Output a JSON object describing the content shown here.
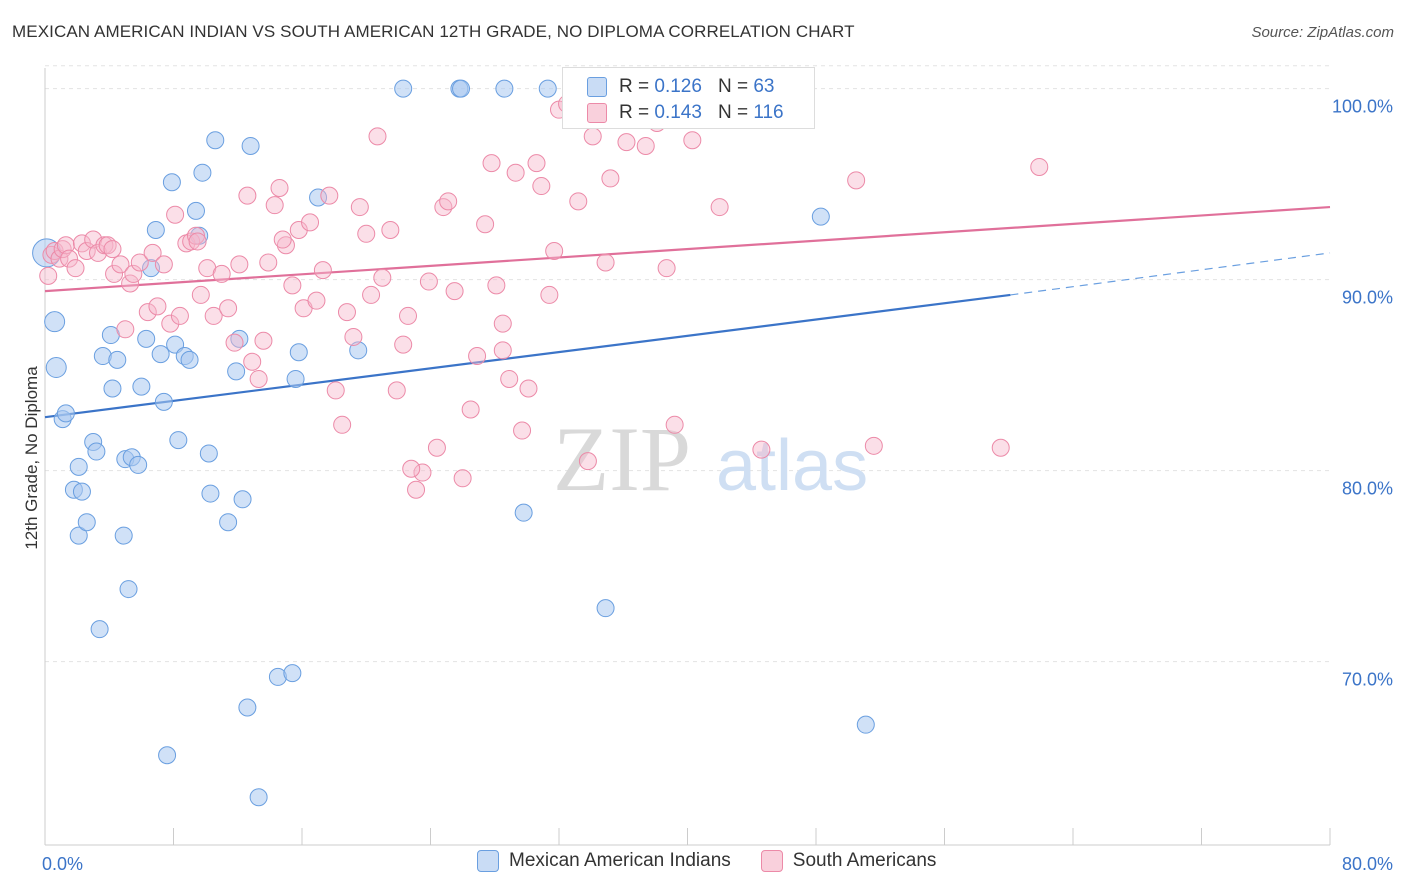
{
  "title": "MEXICAN AMERICAN INDIAN VS SOUTH AMERICAN 12TH GRADE, NO DIPLOMA CORRELATION CHART",
  "source": "Source: ZipAtlas.com",
  "watermark": {
    "zip": "ZIP",
    "atlas": "atlas"
  },
  "stats": [
    {
      "r_label": "R = ",
      "r": "0.126",
      "n_label": "N = ",
      "n": "63",
      "color": "#6a9fe0"
    },
    {
      "r_label": "R = ",
      "r": "0.143",
      "n_label": "N = ",
      "n": "116",
      "color": "#ec8aa8"
    }
  ],
  "legend": [
    {
      "label": "Mexican American Indians",
      "color": "#6a9fe0"
    },
    {
      "label": "South Americans",
      "color": "#ec8aa8"
    }
  ],
  "chart_data": {
    "type": "scatter",
    "title": "MEXICAN AMERICAN INDIAN VS SOUTH AMERICAN 12TH GRADE, NO DIPLOMA CORRELATION CHART",
    "xlabel": "",
    "ylabel": "12th Grade, No Diploma",
    "xlim": [
      0,
      80
    ],
    "ylim": [
      60.4,
      101.5
    ],
    "x_tick_labels": [
      "0.0%",
      "80.0%"
    ],
    "y_ticks": [
      70,
      80,
      90,
      100
    ],
    "y_tick_labels": [
      "70.0%",
      "80.0%",
      "90.0%",
      "100.0%"
    ],
    "grid": true,
    "series": [
      {
        "name": "Mexican American Indians",
        "color": "#6a9fe0",
        "trend": {
          "x": [
            0,
            60.1
          ],
          "y": [
            82.8,
            89.2
          ],
          "dash_to": [
            80,
            91.4
          ]
        },
        "points": [
          [
            0.1,
            91.4
          ],
          [
            0.6,
            87.8
          ],
          [
            0.7,
            85.4
          ],
          [
            1.1,
            82.7
          ],
          [
            1.3,
            83
          ],
          [
            1.8,
            79
          ],
          [
            2.1,
            76.6
          ],
          [
            2.1,
            80.2
          ],
          [
            2.3,
            78.9
          ],
          [
            2.6,
            77.3
          ],
          [
            3,
            81.5
          ],
          [
            3.2,
            81
          ],
          [
            3.4,
            71.7
          ],
          [
            3.6,
            86
          ],
          [
            4.1,
            87.1
          ],
          [
            4.2,
            84.3
          ],
          [
            4.5,
            85.8
          ],
          [
            4.9,
            76.6
          ],
          [
            5,
            80.6
          ],
          [
            5.2,
            73.8
          ],
          [
            5.4,
            80.7
          ],
          [
            5.8,
            80.3
          ],
          [
            6,
            84.4
          ],
          [
            6.3,
            86.9
          ],
          [
            6.6,
            90.6
          ],
          [
            6.9,
            92.6
          ],
          [
            7.2,
            86.1
          ],
          [
            7.4,
            83.6
          ],
          [
            7.6,
            65.1
          ],
          [
            7.9,
            95.1
          ],
          [
            8.1,
            86.6
          ],
          [
            8.3,
            81.6
          ],
          [
            8.7,
            86
          ],
          [
            9,
            85.8
          ],
          [
            9.4,
            93.6
          ],
          [
            9.6,
            92.3
          ],
          [
            9.8,
            95.6
          ],
          [
            10.2,
            80.9
          ],
          [
            10.3,
            78.8
          ],
          [
            10.6,
            97.3
          ],
          [
            11.4,
            77.3
          ],
          [
            11.9,
            85.2
          ],
          [
            12.1,
            86.9
          ],
          [
            12.3,
            78.5
          ],
          [
            12.6,
            67.6
          ],
          [
            12.8,
            97
          ],
          [
            13.3,
            62.9
          ],
          [
            14.5,
            69.2
          ],
          [
            15.4,
            69.4
          ],
          [
            15.6,
            84.8
          ],
          [
            15.8,
            86.2
          ],
          [
            17,
            94.3
          ],
          [
            19.5,
            86.3
          ],
          [
            22.3,
            100
          ],
          [
            25.8,
            100
          ],
          [
            25.9,
            100
          ],
          [
            28.6,
            100
          ],
          [
            29.8,
            77.8
          ],
          [
            31.3,
            100
          ],
          [
            34.9,
            72.8
          ],
          [
            48.3,
            93.3
          ],
          [
            51.1,
            66.7
          ]
        ]
      },
      {
        "name": "South Americans",
        "color": "#ec8aa8",
        "trend": {
          "x": [
            0,
            80
          ],
          "y": [
            89.4,
            93.8
          ]
        },
        "points": [
          [
            0.2,
            90.2
          ],
          [
            0.4,
            91.3
          ],
          [
            0.6,
            91.5
          ],
          [
            0.9,
            91.1
          ],
          [
            1.1,
            91.6
          ],
          [
            1.3,
            91.8
          ],
          [
            1.5,
            91.1
          ],
          [
            1.9,
            90.6
          ],
          [
            2.3,
            91.9
          ],
          [
            2.6,
            91.5
          ],
          [
            3,
            92.1
          ],
          [
            3.3,
            91.4
          ],
          [
            3.7,
            91.8
          ],
          [
            3.9,
            91.8
          ],
          [
            4.2,
            91.6
          ],
          [
            4.3,
            90.3
          ],
          [
            4.7,
            90.8
          ],
          [
            5,
            87.4
          ],
          [
            5.3,
            89.8
          ],
          [
            5.5,
            90.3
          ],
          [
            5.9,
            90.9
          ],
          [
            6.4,
            88.3
          ],
          [
            6.7,
            91.4
          ],
          [
            7,
            88.6
          ],
          [
            7.4,
            90.8
          ],
          [
            7.8,
            87.7
          ],
          [
            8.1,
            93.4
          ],
          [
            8.4,
            88.1
          ],
          [
            8.8,
            91.9
          ],
          [
            9.1,
            92
          ],
          [
            9.4,
            92.3
          ],
          [
            9.7,
            89.2
          ],
          [
            10.1,
            90.6
          ],
          [
            10.5,
            88.1
          ],
          [
            11,
            90.3
          ],
          [
            11.4,
            88.5
          ],
          [
            11.8,
            86.7
          ],
          [
            12.1,
            90.8
          ],
          [
            12.6,
            94.4
          ],
          [
            12.9,
            85.7
          ],
          [
            13.3,
            84.8
          ],
          [
            13.6,
            86.8
          ],
          [
            13.9,
            90.9
          ],
          [
            14.3,
            93.9
          ],
          [
            14.6,
            94.8
          ],
          [
            15,
            91.8
          ],
          [
            15.4,
            89.7
          ],
          [
            15.8,
            92.6
          ],
          [
            16.1,
            88.5
          ],
          [
            16.5,
            93
          ],
          [
            16.9,
            88.9
          ],
          [
            17.3,
            90.5
          ],
          [
            17.7,
            94.4
          ],
          [
            18.1,
            84.2
          ],
          [
            18.5,
            82.4
          ],
          [
            18.8,
            88.3
          ],
          [
            19.2,
            87
          ],
          [
            19.6,
            93.8
          ],
          [
            20,
            92.4
          ],
          [
            20.3,
            89.2
          ],
          [
            20.7,
            97.5
          ],
          [
            21,
            90.1
          ],
          [
            21.5,
            92.6
          ],
          [
            21.9,
            84.2
          ],
          [
            22.3,
            86.6
          ],
          [
            22.6,
            88.1
          ],
          [
            23.1,
            79
          ],
          [
            23.5,
            79.9
          ],
          [
            23.9,
            89.9
          ],
          [
            24.4,
            81.2
          ],
          [
            24.8,
            93.8
          ],
          [
            25.1,
            94.1
          ],
          [
            25.5,
            89.4
          ],
          [
            26,
            79.6
          ],
          [
            26.5,
            83.2
          ],
          [
            26.9,
            86
          ],
          [
            27.4,
            92.9
          ],
          [
            27.8,
            96.1
          ],
          [
            28.1,
            89.7
          ],
          [
            28.5,
            87.7
          ],
          [
            28.9,
            84.8
          ],
          [
            29.3,
            95.6
          ],
          [
            29.7,
            82.1
          ],
          [
            30.1,
            84.3
          ],
          [
            30.6,
            96.1
          ],
          [
            30.9,
            94.9
          ],
          [
            31.4,
            89.2
          ],
          [
            31.7,
            91.5
          ],
          [
            32,
            98.9
          ],
          [
            32.5,
            99.2
          ],
          [
            33.2,
            94.1
          ],
          [
            33.8,
            80.5
          ],
          [
            34.1,
            97.5
          ],
          [
            34.6,
            100
          ],
          [
            35.2,
            95.3
          ],
          [
            35.8,
            98.5
          ],
          [
            36.2,
            97.2
          ],
          [
            36.9,
            100
          ],
          [
            37.4,
            97
          ],
          [
            38.1,
            98.2
          ],
          [
            38.7,
            90.6
          ],
          [
            39.2,
            82.4
          ],
          [
            40.3,
            97.3
          ],
          [
            40.7,
            99.8
          ],
          [
            42,
            93.8
          ],
          [
            44.6,
            81.1
          ],
          [
            50.5,
            95.2
          ],
          [
            51.6,
            81.3
          ],
          [
            59.5,
            81.2
          ],
          [
            61.9,
            95.9
          ],
          [
            9.5,
            92
          ],
          [
            14.8,
            92.1
          ],
          [
            22.8,
            80.1
          ],
          [
            28.5,
            86.3
          ],
          [
            34.9,
            90.9
          ]
        ]
      }
    ]
  }
}
